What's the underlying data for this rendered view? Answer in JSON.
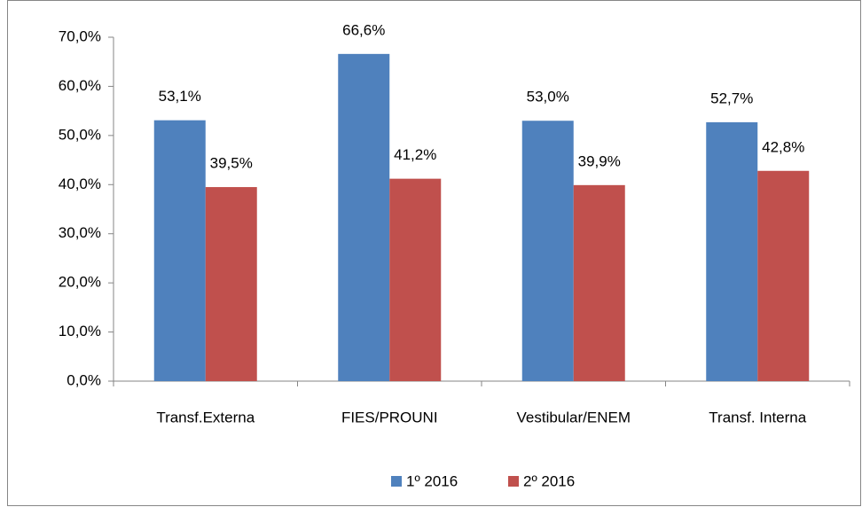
{
  "chart_data": {
    "type": "bar",
    "categories": [
      "Transf.Externa",
      "FIES/PROUNI",
      "Vestibular/ENEM",
      "Transf. Interna"
    ],
    "series": [
      {
        "name": "1º 2016",
        "color": "#4f81bd",
        "values": [
          53.1,
          66.6,
          53.0,
          52.7
        ],
        "value_labels": [
          "53,1%",
          "66,6%",
          "53,0%",
          "52,7%"
        ]
      },
      {
        "name": "2º 2016",
        "color": "#c0504d",
        "values": [
          39.5,
          41.2,
          39.9,
          42.8
        ],
        "value_labels": [
          "39,5%",
          "41,2%",
          "39,9%",
          "42,8%"
        ]
      }
    ],
    "ylim": [
      0,
      70
    ],
    "yticks": [
      {
        "value": 0,
        "label": "0,0%"
      },
      {
        "value": 10,
        "label": "10,0%"
      },
      {
        "value": 20,
        "label": "20,0%"
      },
      {
        "value": 30,
        "label": "30,0%"
      },
      {
        "value": 40,
        "label": "40,0%"
      },
      {
        "value": 50,
        "label": "50,0%"
      },
      {
        "value": 60,
        "label": "60,0%"
      },
      {
        "value": 70,
        "label": "70,0%"
      }
    ],
    "grid": false,
    "legend": "bottom"
  }
}
